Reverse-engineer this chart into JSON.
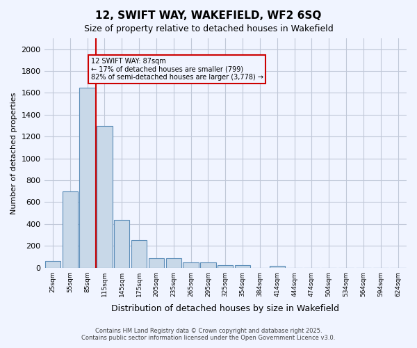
{
  "title": "12, SWIFT WAY, WAKEFIELD, WF2 6SQ",
  "subtitle": "Size of property relative to detached houses in Wakefield",
  "xlabel": "Distribution of detached houses by size in Wakefield",
  "ylabel": "Number of detached properties",
  "categories": [
    "25sqm",
    "55sqm",
    "85sqm",
    "115sqm",
    "145sqm",
    "175sqm",
    "205sqm",
    "235sqm",
    "265sqm",
    "295sqm",
    "325sqm",
    "354sqm",
    "384sqm",
    "414sqm",
    "444sqm",
    "474sqm",
    "504sqm",
    "534sqm",
    "564sqm",
    "594sqm",
    "624sqm"
  ],
  "values": [
    60,
    700,
    1650,
    1300,
    440,
    250,
    85,
    85,
    50,
    50,
    25,
    25,
    0,
    15,
    0,
    0,
    0,
    0,
    0,
    0,
    0
  ],
  "bar_color": "#c8d8e8",
  "bar_edge_color": "#5b8db8",
  "red_line_index": 2,
  "annotation_title": "12 SWIFT WAY: 87sqm",
  "annotation_line1": "← 17% of detached houses are smaller (799)",
  "annotation_line2": "82% of semi-detached houses are larger (3,778) →",
  "annotation_box_color": "#cc0000",
  "ylim": [
    0,
    2100
  ],
  "yticks": [
    0,
    200,
    400,
    600,
    800,
    1000,
    1200,
    1400,
    1600,
    1800,
    2000
  ],
  "footer_line1": "Contains HM Land Registry data © Crown copyright and database right 2025.",
  "footer_line2": "Contains public sector information licensed under the Open Government Licence v3.0.",
  "background_color": "#f0f4ff",
  "grid_color": "#c0c8d8"
}
